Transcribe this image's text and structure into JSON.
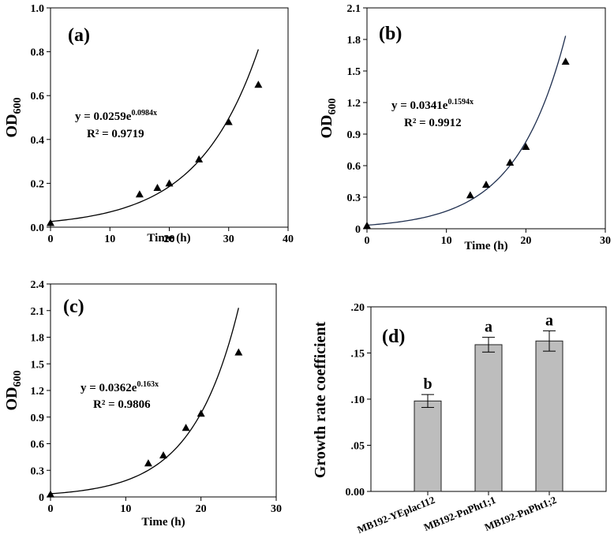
{
  "chart_data": [
    {
      "type": "scatter",
      "panel_label": "(a)",
      "xlabel": "Time (h)",
      "ylabel": "OD",
      "ylabel_sub": "600",
      "xlim": [
        0,
        40
      ],
      "ylim": [
        0,
        1.0
      ],
      "xticks": [
        0,
        10,
        20,
        30,
        40
      ],
      "yticks": [
        0.0,
        0.2,
        0.4,
        0.6,
        0.8,
        1.0
      ],
      "ytick_labels": [
        "0.0",
        "0.2",
        "0.4",
        "0.6",
        "0.8",
        "1.0"
      ],
      "x": [
        0,
        15,
        18,
        20,
        25,
        30,
        35
      ],
      "y": [
        0.02,
        0.15,
        0.18,
        0.2,
        0.31,
        0.48,
        0.65
      ],
      "fit": {
        "a": 0.0259,
        "b": 0.0984,
        "x_range": [
          0,
          35
        ]
      },
      "equation_prefix": "y = 0.0259e",
      "equation_exp": "0.0984x",
      "r2_text": "R² = 0.9719",
      "fit_color": "#000000"
    },
    {
      "type": "scatter",
      "panel_label": "(b)",
      "xlabel": "Time (h)",
      "ylabel": "OD",
      "ylabel_sub": "600",
      "xlim": [
        0,
        30
      ],
      "ylim": [
        0,
        2.1
      ],
      "xticks": [
        0,
        10,
        20,
        30
      ],
      "yticks": [
        0,
        0.3,
        0.6,
        0.9,
        1.2,
        1.5,
        1.8,
        2.1
      ],
      "ytick_labels": [
        "0",
        "0.3",
        "0.6",
        "0.9",
        "1.2",
        "1.5",
        "1.8",
        "2.1"
      ],
      "x": [
        0,
        13,
        15,
        18,
        20,
        25
      ],
      "y": [
        0.03,
        0.32,
        0.42,
        0.63,
        0.78,
        1.59
      ],
      "fit": {
        "a": 0.0341,
        "b": 0.1594,
        "x_range": [
          0,
          25
        ]
      },
      "equation_prefix": "y = 0.0341e",
      "equation_exp": "0.1594x",
      "r2_text": "R² = 0.9912",
      "fit_color": "#1f2f4f"
    },
    {
      "type": "scatter",
      "panel_label": "(c)",
      "xlabel": "Time (h)",
      "ylabel": "OD",
      "ylabel_sub": "600",
      "xlim": [
        0,
        30
      ],
      "ylim": [
        0,
        2.4
      ],
      "xticks": [
        0,
        10,
        20,
        30
      ],
      "yticks": [
        0,
        0.3,
        0.6,
        0.9,
        1.2,
        1.5,
        1.8,
        2.1,
        2.4
      ],
      "ytick_labels": [
        "0",
        "0.3",
        "0.6",
        "0.9",
        "1.2",
        "1.5",
        "1.8",
        "2.1",
        "2.4"
      ],
      "x": [
        0,
        13,
        15,
        18,
        20,
        25
      ],
      "y": [
        0.03,
        0.38,
        0.47,
        0.78,
        0.94,
        1.63
      ],
      "fit": {
        "a": 0.0362,
        "b": 0.163,
        "x_range": [
          0,
          25
        ]
      },
      "equation_prefix": "y = 0.0362e",
      "equation_exp": "0.163x",
      "r2_text": "R² = 0.9806",
      "fit_color": "#000000"
    },
    {
      "type": "bar",
      "panel_label": "(d)",
      "xlabel": "",
      "ylabel": "Growth rate coefficient",
      "ylim": [
        0,
        0.2
      ],
      "yticks": [
        0,
        0.05,
        0.1,
        0.15,
        0.2
      ],
      "ytick_labels": [
        "0.00",
        ".05",
        ".10",
        ".15",
        ".20"
      ],
      "categories": [
        "MB192-YEplac112",
        "MB192-PnPht1;1",
        "MB192-PnPht1;2"
      ],
      "values": [
        0.098,
        0.159,
        0.163
      ],
      "errors": [
        0.007,
        0.008,
        0.011
      ],
      "significance": [
        "b",
        "a",
        "a"
      ],
      "bar_color": "#bdbdbd"
    }
  ]
}
